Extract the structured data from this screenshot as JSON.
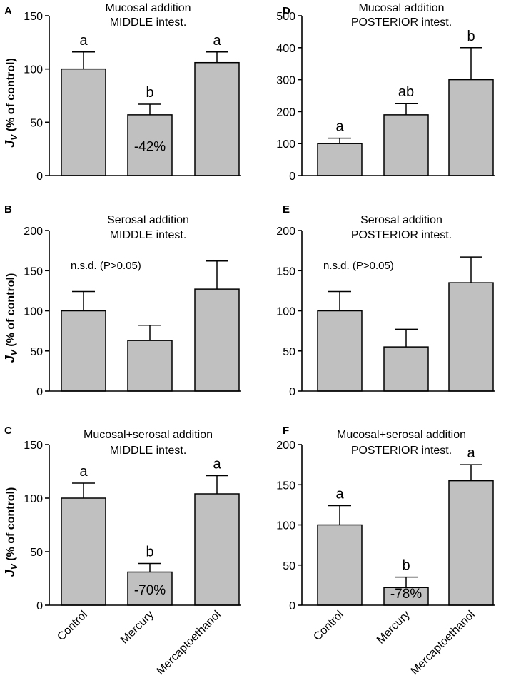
{
  "figure": {
    "category_labels": [
      "Control",
      "Mercury",
      "Mercaptoethanol"
    ],
    "bar_color": "#c0c0c0"
  },
  "chart_data": [
    {
      "id": "A",
      "type": "bar",
      "panel_label": "A",
      "title": [
        "Mucosal addition",
        "MIDDLE intest."
      ],
      "ylabel_main": "J",
      "ylabel_sub": "V",
      "ylabel_rest": " (% of control)",
      "ylim": [
        0,
        150
      ],
      "yticks": [
        0,
        50,
        100,
        150
      ],
      "categories": [
        "Control",
        "Mercury",
        "Mercaptoethanol"
      ],
      "values": [
        100,
        57,
        106
      ],
      "errors": [
        16,
        10,
        10
      ],
      "letters": [
        "a",
        "b",
        "a"
      ],
      "inside_labels": [
        "",
        "-42%",
        ""
      ],
      "note": ""
    },
    {
      "id": "D",
      "type": "bar",
      "panel_label": "D",
      "title": [
        "Mucosal addition",
        "POSTERIOR intest."
      ],
      "ylabel_main": "",
      "ylabel_sub": "",
      "ylabel_rest": "",
      "ylim": [
        0,
        500
      ],
      "yticks": [
        0,
        100,
        200,
        300,
        400,
        500
      ],
      "categories": [
        "Control",
        "Mercury",
        "Mercaptoethanol"
      ],
      "values": [
        100,
        190,
        300
      ],
      "errors": [
        17,
        35,
        100
      ],
      "letters": [
        "a",
        "ab",
        "b"
      ],
      "inside_labels": [
        "",
        "",
        ""
      ],
      "note": ""
    },
    {
      "id": "B",
      "type": "bar",
      "panel_label": "B",
      "title": [
        "Serosal addition",
        "MIDDLE intest."
      ],
      "ylabel_main": "J",
      "ylabel_sub": "V",
      "ylabel_rest": " (% of control)",
      "ylim": [
        0,
        200
      ],
      "yticks": [
        0,
        50,
        100,
        150,
        200
      ],
      "categories": [
        "Control",
        "Mercury",
        "Mercaptoethanol"
      ],
      "values": [
        100,
        63,
        127
      ],
      "errors": [
        24,
        19,
        35
      ],
      "letters": [
        "",
        "",
        ""
      ],
      "inside_labels": [
        "",
        "",
        ""
      ],
      "note": "n.s.d.  (P>0.05)"
    },
    {
      "id": "E",
      "type": "bar",
      "panel_label": "E",
      "title": [
        "Serosal addition",
        "POSTERIOR intest."
      ],
      "ylabel_main": "",
      "ylabel_sub": "",
      "ylabel_rest": "",
      "ylim": [
        0,
        200
      ],
      "yticks": [
        0,
        50,
        100,
        150,
        200
      ],
      "categories": [
        "Control",
        "Mercury",
        "Mercaptoethanol"
      ],
      "values": [
        100,
        55,
        135
      ],
      "errors": [
        24,
        22,
        32
      ],
      "letters": [
        "",
        "",
        ""
      ],
      "inside_labels": [
        "",
        "",
        ""
      ],
      "note": "n.s.d.  (P>0.05)"
    },
    {
      "id": "C",
      "type": "bar",
      "panel_label": "C",
      "title": [
        "Mucosal+serosal addition",
        "MIDDLE intest."
      ],
      "ylabel_main": "J",
      "ylabel_sub": "V",
      "ylabel_rest": " (% of control)",
      "ylim": [
        0,
        150
      ],
      "yticks": [
        0,
        50,
        100,
        150
      ],
      "categories": [
        "Control",
        "Mercury",
        "Mercaptoethanol"
      ],
      "values": [
        100,
        31,
        104
      ],
      "errors": [
        14,
        8,
        17
      ],
      "letters": [
        "a",
        "b",
        "a"
      ],
      "inside_labels": [
        "",
        "-70%",
        ""
      ],
      "note": ""
    },
    {
      "id": "F",
      "type": "bar",
      "panel_label": "F",
      "title": [
        "Mucosal+serosal addition",
        "POSTERIOR intest."
      ],
      "ylabel_main": "",
      "ylabel_sub": "",
      "ylabel_rest": "",
      "ylim": [
        0,
        200
      ],
      "yticks": [
        0,
        50,
        100,
        150,
        200
      ],
      "categories": [
        "Control",
        "Mercury",
        "Mercaptoethanol"
      ],
      "values": [
        100,
        22,
        155
      ],
      "errors": [
        24,
        13,
        20
      ],
      "letters": [
        "a",
        "b",
        "a"
      ],
      "inside_labels": [
        "",
        "-78%",
        ""
      ],
      "note": ""
    }
  ]
}
